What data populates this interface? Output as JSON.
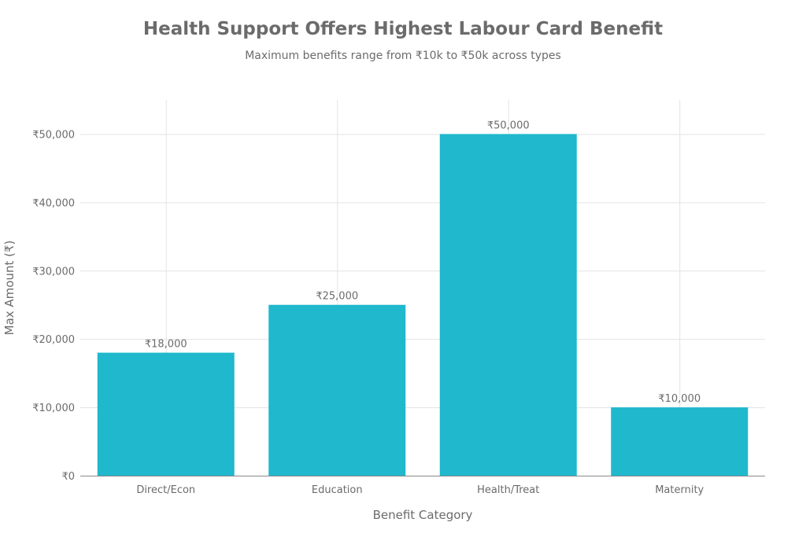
{
  "chart_data": {
    "type": "bar",
    "title": "Health Support Offers Highest Labour Card Benefit",
    "subtitle": "Maximum benefits range from ₹10k to ₹50k across types",
    "xlabel": "Benefit Category",
    "ylabel": "Max Amount (₹)",
    "categories": [
      "Direct/Econ",
      "Education",
      "Health/Treat",
      "Maternity"
    ],
    "values": [
      18000,
      25000,
      50000,
      10000
    ],
    "data_labels": [
      "₹18,000",
      "₹25,000",
      "₹50,000",
      "₹10,000"
    ],
    "yticks": [
      0,
      10000,
      20000,
      30000,
      40000,
      50000
    ],
    "ytick_labels": [
      "₹0",
      "₹10,000",
      "₹20,000",
      "₹30,000",
      "₹40,000",
      "₹50,000"
    ],
    "ylim": [
      0,
      55000
    ],
    "grid": true,
    "bar_color": "#1FB8CD"
  }
}
